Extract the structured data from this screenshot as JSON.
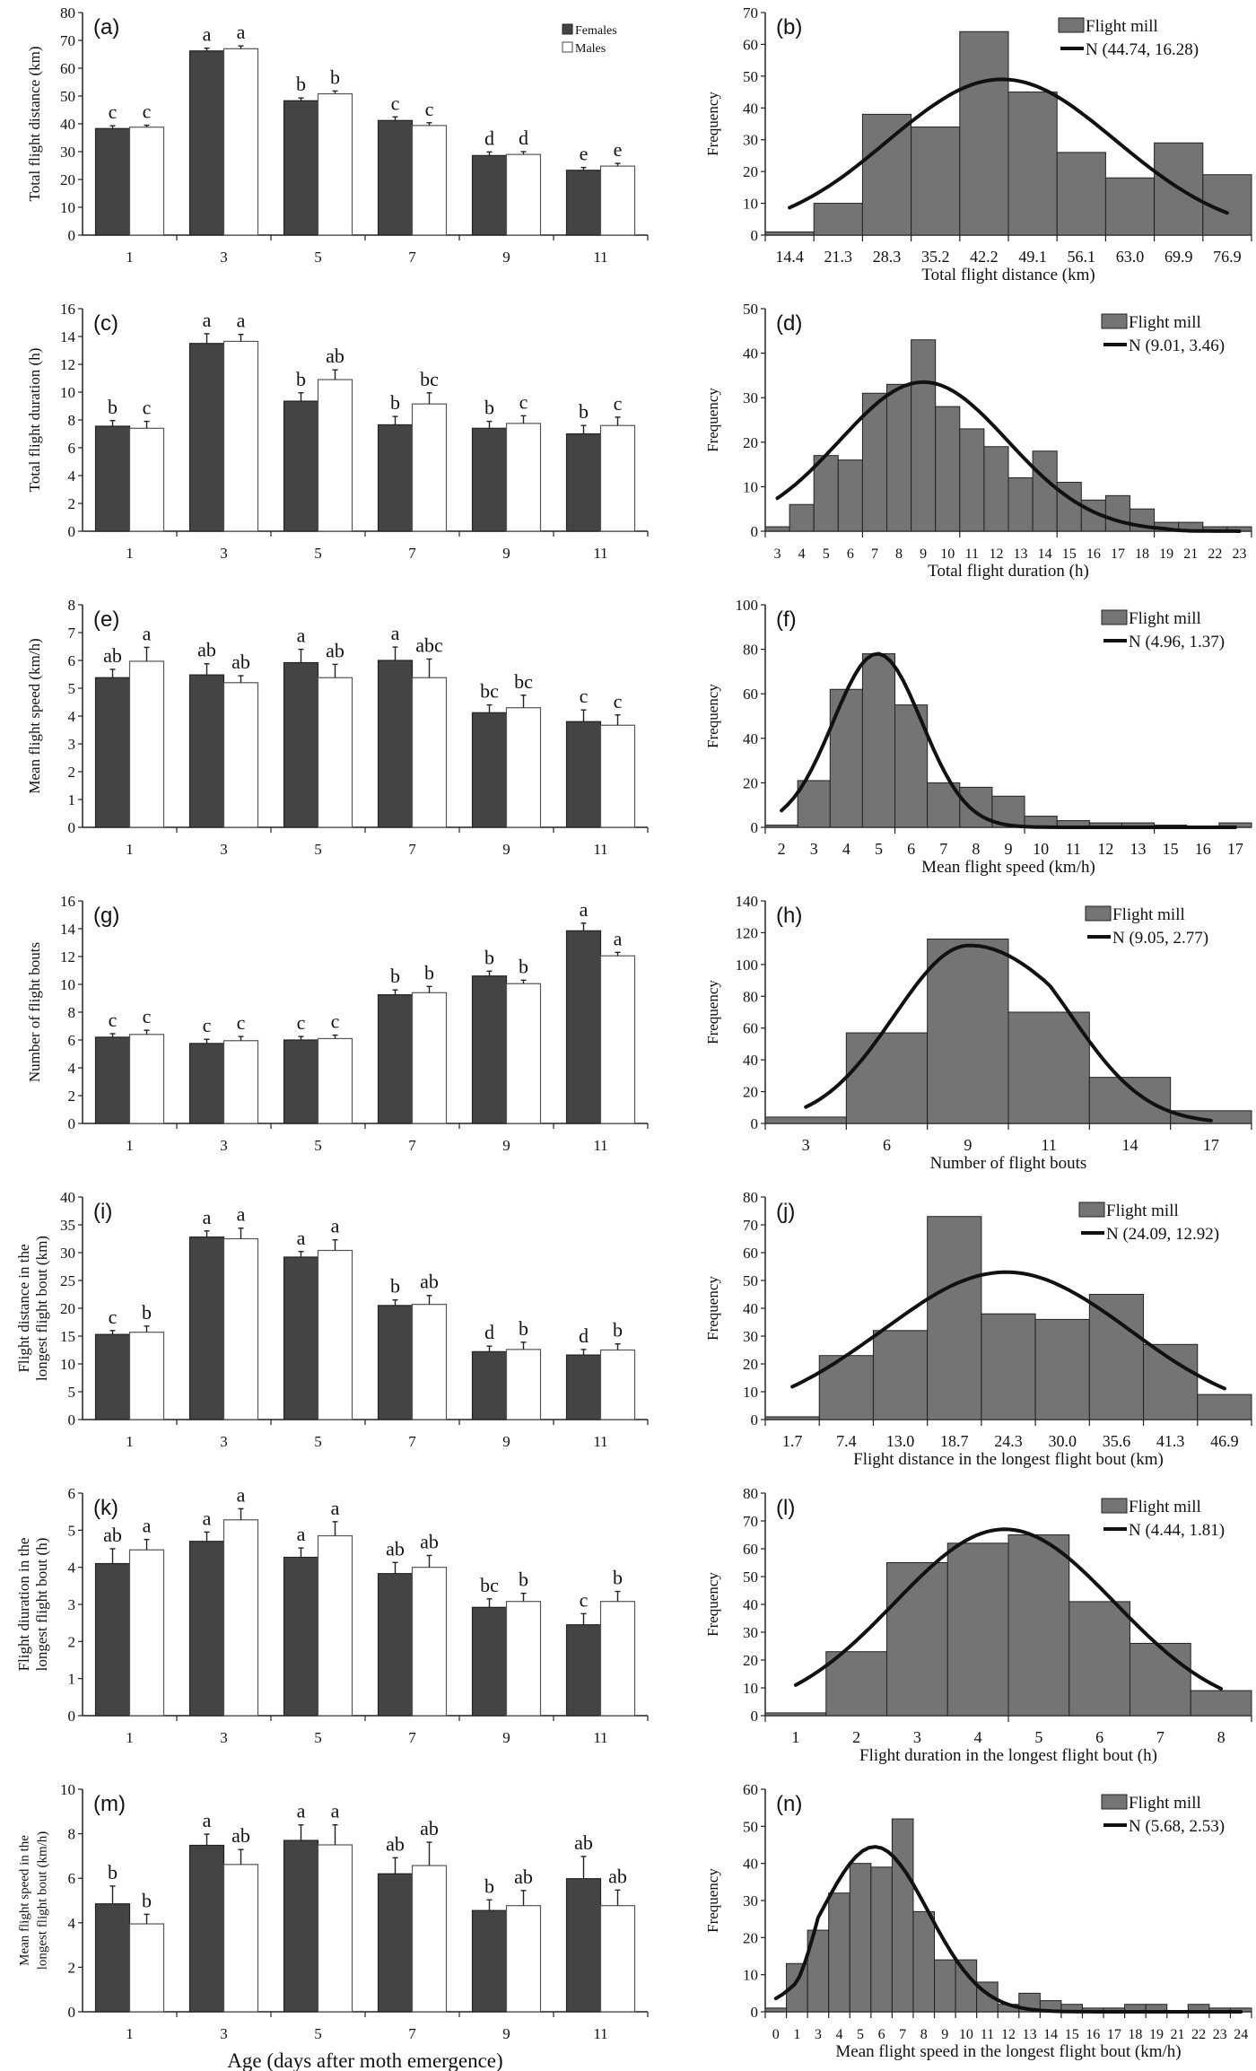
{
  "legend": {
    "females": "Females",
    "males": "Males",
    "hist_bars": "Flight mill"
  },
  "colors": {
    "females": "#444444",
    "males": "#ffffff",
    "hist_bars": "#747474",
    "curve": "#111111"
  },
  "chart_data": [
    {
      "panel": "(a)",
      "type": "bar",
      "categories": [
        "1",
        "3",
        "5",
        "7",
        "9",
        "11"
      ],
      "ylabel": [
        "Total flight distance (km)"
      ],
      "xlabel": "",
      "ylim": [
        0,
        80
      ],
      "ytick_step": 10,
      "show_legend": true,
      "series": [
        {
          "name": "Females",
          "values": [
            38.3,
            66.2,
            48.3,
            41.2,
            28.6,
            23.3
          ],
          "errors": [
            1.0,
            1.0,
            1.0,
            1.3,
            1.3,
            1.0
          ],
          "letters": [
            "c",
            "a",
            "b",
            "c",
            "d",
            "e"
          ]
        },
        {
          "name": "Males",
          "values": [
            38.8,
            67.0,
            50.8,
            39.4,
            29.0,
            24.8
          ],
          "errors": [
            0.7,
            1.0,
            1.0,
            1.0,
            1.0,
            1.0
          ],
          "letters": [
            "c",
            "a",
            "b",
            "c",
            "d",
            "e"
          ]
        }
      ]
    },
    {
      "panel": "(b)",
      "type": "histogram",
      "bin_labels": [
        "14.4",
        "21.3",
        "28.3",
        "35.2",
        "42.2",
        "49.1",
        "56.1",
        "63.0",
        "69.9",
        "76.9"
      ],
      "values": [
        1,
        10,
        38,
        34,
        64,
        45,
        26,
        18,
        29,
        19
      ],
      "ylabel": [
        "Frequency"
      ],
      "xlabel": "Total flight distance (km)",
      "ylim": [
        0,
        70
      ],
      "ytick_step": 10,
      "series": [
        {
          "name": "Flight mill"
        },
        {
          "name": "N (44.74, 16.28)",
          "mean": 44.74,
          "sd": 16.28,
          "peak": 49
        }
      ]
    },
    {
      "panel": "(c)",
      "type": "bar",
      "categories": [
        "1",
        "3",
        "5",
        "7",
        "9",
        "11"
      ],
      "ylabel": [
        "Total flight duration (h)"
      ],
      "xlabel": "",
      "ylim": [
        0,
        16
      ],
      "ytick_step": 2,
      "series": [
        {
          "name": "Females",
          "values": [
            7.55,
            13.5,
            9.35,
            7.65,
            7.4,
            7.0
          ],
          "errors": [
            0.4,
            0.7,
            0.6,
            0.6,
            0.5,
            0.6
          ],
          "letters": [
            "b",
            "a",
            "b",
            "b",
            "b",
            "b"
          ]
        },
        {
          "name": "Males",
          "values": [
            7.4,
            13.65,
            10.9,
            9.15,
            7.75,
            7.6
          ],
          "errors": [
            0.5,
            0.5,
            0.7,
            0.8,
            0.55,
            0.6
          ],
          "letters": [
            "c",
            "a",
            "ab",
            "bc",
            "c",
            "c"
          ]
        }
      ]
    },
    {
      "panel": "(d)",
      "type": "histogram",
      "bin_labels": [
        "3",
        "4",
        "5",
        "6",
        "7",
        "8",
        "9",
        "10",
        "11",
        "12",
        "13",
        "14",
        "15",
        "16",
        "17",
        "18",
        "19",
        "21",
        "22",
        "23"
      ],
      "values": [
        1,
        6,
        17,
        16,
        31,
        33,
        43,
        28,
        23,
        19,
        12,
        18,
        11,
        7,
        8,
        5,
        2,
        2,
        1,
        1
      ],
      "ylabel": [
        "Frequency"
      ],
      "xlabel": "Total flight duration (h)",
      "ylim": [
        0,
        50
      ],
      "ytick_step": 10,
      "series": [
        {
          "name": "Flight mill"
        },
        {
          "name": "N (9.01, 3.46)",
          "mean": 9.01,
          "sd": 3.46,
          "peak": 33.5
        }
      ]
    },
    {
      "panel": "(e)",
      "type": "bar",
      "categories": [
        "1",
        "3",
        "5",
        "7",
        "9",
        "11"
      ],
      "ylabel": [
        "Mean flight speed (km/h)"
      ],
      "xlabel": "",
      "ylim": [
        0,
        8
      ],
      "ytick_step": 1,
      "series": [
        {
          "name": "Females",
          "values": [
            5.38,
            5.48,
            5.92,
            6.0,
            4.12,
            3.8
          ],
          "errors": [
            0.3,
            0.4,
            0.48,
            0.48,
            0.28,
            0.42
          ],
          "letters": [
            "ab",
            "ab",
            "a",
            "a",
            "bc",
            "c"
          ]
        },
        {
          "name": "Males",
          "values": [
            5.97,
            5.2,
            5.38,
            5.38,
            4.3,
            3.67
          ],
          "errors": [
            0.5,
            0.25,
            0.48,
            0.67,
            0.45,
            0.37
          ],
          "letters": [
            "a",
            "ab",
            "ab",
            "abc",
            "bc",
            "c"
          ]
        }
      ]
    },
    {
      "panel": "(f)",
      "type": "histogram",
      "bin_labels": [
        "2",
        "3",
        "4",
        "5",
        "6",
        "7",
        "8",
        "9",
        "10",
        "11",
        "12",
        "13",
        "15",
        "16",
        "17"
      ],
      "values": [
        1,
        21,
        62,
        78,
        55,
        20,
        18,
        14,
        5,
        3,
        2,
        2,
        1,
        0,
        2
      ],
      "ylabel": [
        "Frequency"
      ],
      "xlabel": "Mean flight speed (km/h)",
      "ylim": [
        0,
        100
      ],
      "ytick_step": 20,
      "series": [
        {
          "name": "Flight mill"
        },
        {
          "name": "N (4.96, 1.37)",
          "mean": 4.96,
          "sd": 1.37,
          "peak": 78
        }
      ]
    },
    {
      "panel": "(g)",
      "type": "bar",
      "categories": [
        "1",
        "3",
        "5",
        "7",
        "9",
        "11"
      ],
      "ylabel": [
        "Number of flight bouts"
      ],
      "xlabel": "",
      "ylim": [
        0,
        16
      ],
      "ytick_step": 2,
      "series": [
        {
          "name": "Females",
          "values": [
            6.2,
            5.75,
            6.0,
            9.25,
            10.6,
            13.85
          ],
          "errors": [
            0.25,
            0.3,
            0.25,
            0.35,
            0.35,
            0.55
          ],
          "letters": [
            "c",
            "c",
            "c",
            "b",
            "b",
            "a"
          ]
        },
        {
          "name": "Males",
          "values": [
            6.4,
            5.95,
            6.1,
            9.4,
            10.05,
            12.05
          ],
          "errors": [
            0.3,
            0.3,
            0.25,
            0.45,
            0.25,
            0.25
          ],
          "letters": [
            "c",
            "c",
            "c",
            "b",
            "b",
            "a"
          ]
        }
      ]
    },
    {
      "panel": "(h)",
      "type": "histogram",
      "bin_labels": [
        "3",
        "6",
        "9",
        "11",
        "14",
        "17"
      ],
      "values": [
        4,
        57,
        116,
        70,
        29,
        8
      ],
      "ylabel": [
        "Frequency"
      ],
      "xlabel": "Number of flight bouts",
      "ylim": [
        0,
        140
      ],
      "ytick_step": 20,
      "series": [
        {
          "name": "Flight mill"
        },
        {
          "name": "N (9.05, 2.77)",
          "mean": 9.05,
          "sd": 2.77,
          "peak": 112
        }
      ]
    },
    {
      "panel": "(i)",
      "type": "bar",
      "categories": [
        "1",
        "3",
        "5",
        "7",
        "9",
        "11"
      ],
      "ylabel": [
        "Flight distance in the",
        "longest flight bout (km)"
      ],
      "xlabel": "",
      "ylim": [
        0,
        40
      ],
      "ytick_step": 5,
      "series": [
        {
          "name": "Females",
          "values": [
            15.3,
            32.8,
            29.2,
            20.5,
            12.2,
            11.6
          ],
          "errors": [
            0.7,
            1.1,
            1.0,
            1.0,
            1.0,
            1.0
          ],
          "letters": [
            "c",
            "a",
            "a",
            "b",
            "d",
            "d"
          ]
        },
        {
          "name": "Males",
          "values": [
            15.7,
            32.5,
            30.4,
            20.7,
            12.6,
            12.5
          ],
          "errors": [
            1.1,
            1.9,
            1.9,
            1.6,
            1.3,
            1.1
          ],
          "letters": [
            "b",
            "a",
            "a",
            "ab",
            "b",
            "b"
          ]
        }
      ]
    },
    {
      "panel": "(j)",
      "type": "histogram",
      "bin_labels": [
        "1.7",
        "7.4",
        "13.0",
        "18.7",
        "24.3",
        "30.0",
        "35.6",
        "41.3",
        "46.9"
      ],
      "values": [
        1,
        23,
        32,
        73,
        38,
        36,
        45,
        27,
        9
      ],
      "ylabel": [
        "Frequency"
      ],
      "xlabel": "Flight distance in the longest flight bout (km)",
      "ylim": [
        0,
        80
      ],
      "ytick_step": 10,
      "series": [
        {
          "name": "Flight mill"
        },
        {
          "name": "N (24.09, 12.92)",
          "mean": 24.09,
          "sd": 12.92,
          "peak": 53
        }
      ]
    },
    {
      "panel": "(k)",
      "type": "bar",
      "categories": [
        "1",
        "3",
        "5",
        "7",
        "9",
        "11"
      ],
      "ylabel": [
        "Flight diuration in the",
        "longest flight bout (h)"
      ],
      "xlabel": "",
      "ylim": [
        0,
        6
      ],
      "ytick_step": 1,
      "series": [
        {
          "name": "Females",
          "values": [
            4.1,
            4.7,
            4.27,
            3.83,
            2.92,
            2.45
          ],
          "errors": [
            0.4,
            0.25,
            0.25,
            0.3,
            0.23,
            0.3
          ],
          "letters": [
            "ab",
            "a",
            "a",
            "ab",
            "bc",
            "c"
          ]
        },
        {
          "name": "Males",
          "values": [
            4.47,
            5.28,
            4.85,
            4.0,
            3.08,
            3.08
          ],
          "errors": [
            0.28,
            0.3,
            0.38,
            0.32,
            0.22,
            0.27
          ],
          "letters": [
            "a",
            "a",
            "a",
            "ab",
            "b",
            "b"
          ]
        }
      ]
    },
    {
      "panel": "(l)",
      "type": "histogram",
      "bin_labels": [
        "1",
        "2",
        "3",
        "4",
        "5",
        "6",
        "7",
        "8"
      ],
      "values": [
        1,
        23,
        55,
        62,
        65,
        41,
        26,
        9
      ],
      "ylabel": [
        "Frequency"
      ],
      "xlabel": "Flight duration in the longest flight bout (h)",
      "ylim": [
        0,
        80
      ],
      "ytick_step": 10,
      "series": [
        {
          "name": "Flight mill"
        },
        {
          "name": "N (4.44, 1.81)",
          "mean": 4.44,
          "sd": 1.81,
          "peak": 67
        }
      ]
    },
    {
      "panel": "(m)",
      "type": "bar",
      "categories": [
        "1",
        "3",
        "5",
        "7",
        "9",
        "11"
      ],
      "ylabel": [
        "Mean flight speed in the",
        "longest flight bout (km/h)"
      ],
      "xlabel": "Age (days after moth emergence)",
      "ylim": [
        0,
        10
      ],
      "ytick_step": 2,
      "series": [
        {
          "name": "Females",
          "values": [
            4.85,
            7.48,
            7.7,
            6.2,
            4.55,
            5.98
          ],
          "errors": [
            0.8,
            0.5,
            0.7,
            0.72,
            0.48,
            1.0
          ],
          "letters": [
            "b",
            "a",
            "a",
            "ab",
            "b",
            "ab"
          ]
        },
        {
          "name": "Males",
          "values": [
            3.95,
            6.62,
            7.5,
            6.57,
            4.77,
            4.77
          ],
          "errors": [
            0.43,
            0.67,
            0.9,
            1.05,
            0.68,
            0.7
          ],
          "letters": [
            "b",
            "ab",
            "a",
            "ab",
            "ab",
            "ab"
          ]
        }
      ]
    },
    {
      "panel": "(n)",
      "type": "histogram",
      "bin_labels": [
        "0",
        "1",
        "3",
        "4",
        "5",
        "6",
        "7",
        "8",
        "9",
        "10",
        "11",
        "12",
        "13",
        "14",
        "15",
        "16",
        "17",
        "18",
        "19",
        "21",
        "22",
        "23",
        "24"
      ],
      "values": [
        1,
        13,
        22,
        32,
        40,
        39,
        52,
        27,
        14,
        14,
        8,
        2,
        5,
        3,
        2,
        1,
        1,
        2,
        2,
        0,
        2,
        1,
        1
      ],
      "ylabel": [
        "Frequency"
      ],
      "xlabel": "Mean flight speed in the longest flight bout (km/h)",
      "ylim": [
        0,
        60
      ],
      "ytick_step": 10,
      "series": [
        {
          "name": "Flight mill"
        },
        {
          "name": "N (5.68, 2.53)",
          "mean": 5.68,
          "sd": 2.53,
          "peak": 44.5
        }
      ]
    }
  ]
}
